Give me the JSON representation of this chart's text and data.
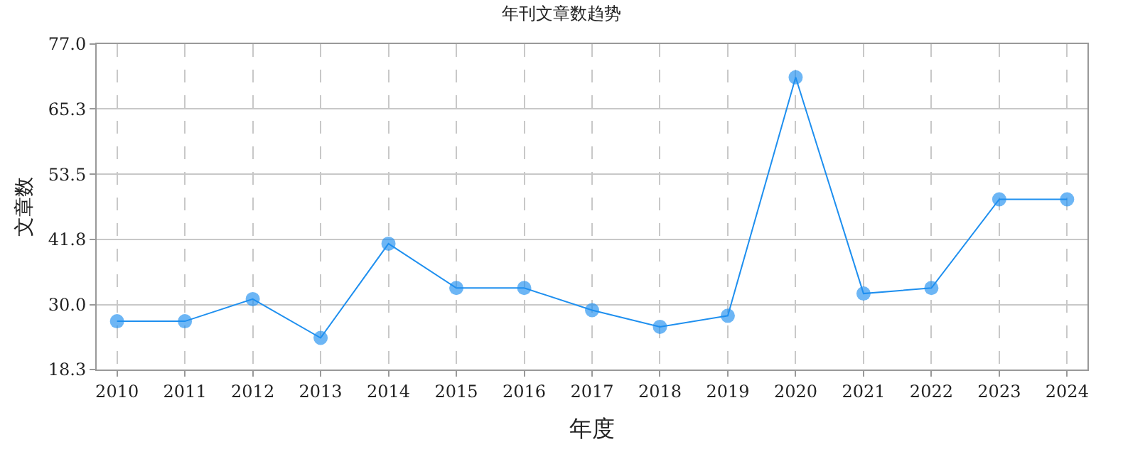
{
  "chart_data": {
    "type": "line",
    "title": "年刊文章数趋势",
    "xlabel": "年度",
    "ylabel": "文章数",
    "categories": [
      "2010",
      "2011",
      "2012",
      "2013",
      "2014",
      "2015",
      "2016",
      "2017",
      "2018",
      "2019",
      "2020",
      "2021",
      "2022",
      "2023",
      "2024"
    ],
    "series": [
      {
        "color": "#1e8fef",
        "values": [
          27,
          27,
          31,
          24,
          41,
          33,
          33,
          29,
          26,
          28,
          71,
          32,
          33,
          49,
          49
        ]
      }
    ],
    "ylim": [
      18.3,
      77.0
    ],
    "yticks": [
      {
        "value": 18.3,
        "label": "18.3"
      },
      {
        "value": 30.0,
        "label": "30.0"
      },
      {
        "value": 41.8,
        "label": "41.8"
      },
      {
        "value": 53.5,
        "label": "53.5"
      },
      {
        "value": 65.3,
        "label": "65.3"
      },
      {
        "value": 77.0,
        "label": "77.0"
      }
    ],
    "grid": true,
    "marker": "circle",
    "line_style": "solid"
  }
}
